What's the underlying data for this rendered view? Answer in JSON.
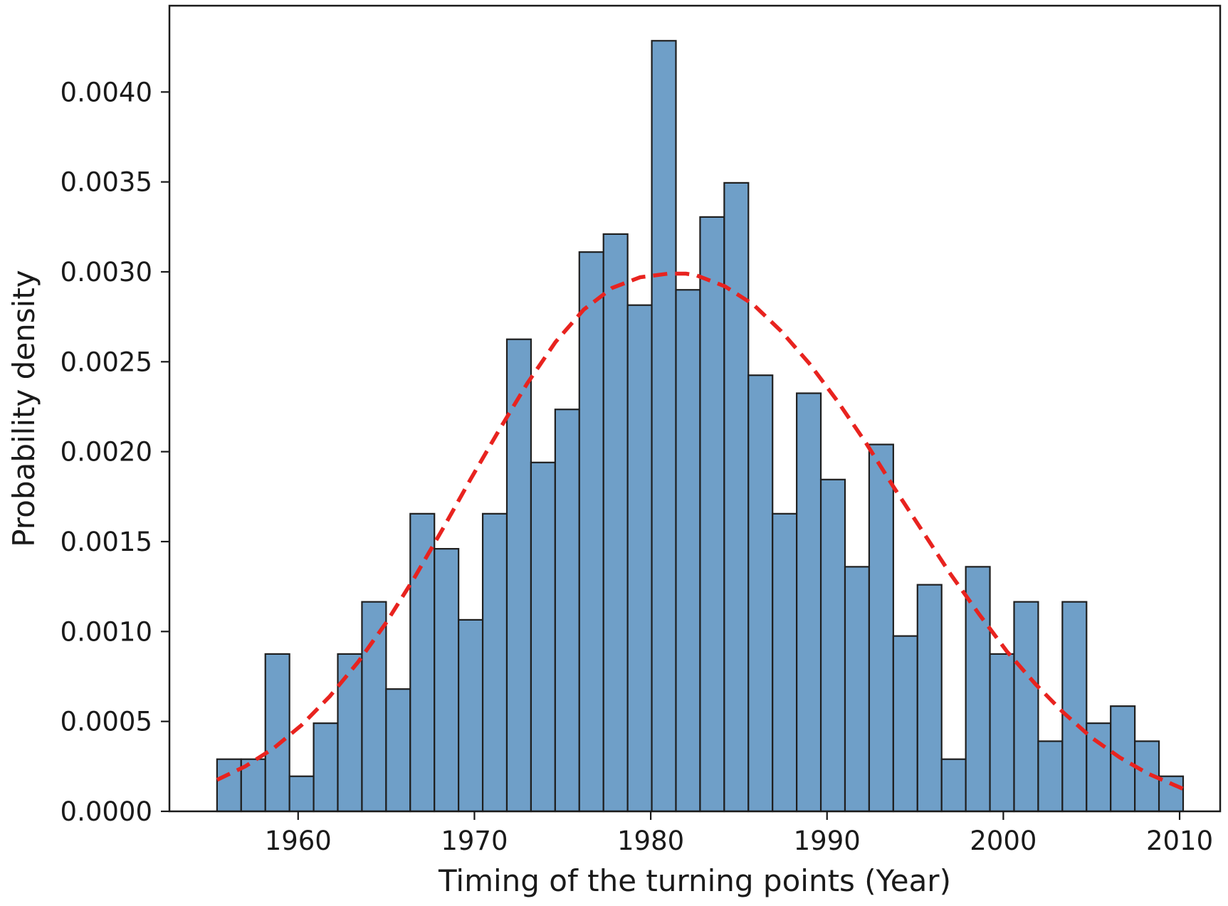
{
  "chart_data": {
    "type": "bar",
    "xlabel": "Timing of the turning points (Year)",
    "ylabel": "Probability density",
    "xlim": [
      1952.7,
      2012.3
    ],
    "ylim": [
      0,
      0.00448
    ],
    "x_ticks": [
      1960,
      1970,
      1980,
      1990,
      2000,
      2010
    ],
    "x_tick_labels": [
      "1960",
      "1970",
      "1980",
      "1990",
      "2000",
      "2010"
    ],
    "y_ticks": [
      0,
      0.0005,
      0.001,
      0.0015,
      0.002,
      0.0025,
      0.003,
      0.0035,
      0.004
    ],
    "y_tick_labels": [
      "0.0000",
      "0.0005",
      "0.0010",
      "0.0015",
      "0.0020",
      "0.0025",
      "0.0030",
      "0.0035",
      "0.0040"
    ],
    "grid": false,
    "bin_edges": [
      1955.4,
      1956.77,
      1958.14,
      1959.51,
      1960.88,
      1962.25,
      1963.62,
      1964.99,
      1966.36,
      1967.73,
      1969.1,
      1970.47,
      1971.84,
      1973.21,
      1974.58,
      1975.95,
      1977.32,
      1978.69,
      1980.06,
      1981.43,
      1982.8,
      1984.17,
      1985.54,
      1986.91,
      1988.28,
      1989.65,
      1991.02,
      1992.39,
      1993.76,
      1995.13,
      1996.5,
      1997.87,
      1999.24,
      2000.61,
      2001.98,
      2003.35,
      2004.72,
      2006.09,
      2007.46,
      2008.83,
      2010.2
    ],
    "series": [
      {
        "type": "histogram",
        "values": [
          0.00029,
          0.00029,
          0.000875,
          0.000195,
          0.00049,
          0.000875,
          0.001165,
          0.00068,
          0.001655,
          0.00146,
          0.001065,
          0.001655,
          0.002625,
          0.00194,
          0.002235,
          0.00311,
          0.00321,
          0.002815,
          0.004285,
          0.0029,
          0.003305,
          0.003495,
          0.002425,
          0.001655,
          0.002325,
          0.001845,
          0.00136,
          0.00204,
          0.000975,
          0.00126,
          0.00029,
          0.00136,
          0.000875,
          0.001165,
          0.00039,
          0.001165,
          0.00049,
          0.000585,
          0.00039,
          0.000195
        ],
        "color": "#6f9fc8",
        "edge_color": "#1f1f1f"
      },
      {
        "type": "line",
        "style": "dashed",
        "color": "#e8231f",
        "x": [
          1955.4,
          1957.0,
          1958.6,
          1960.2,
          1961.8,
          1963.4,
          1965.0,
          1966.6,
          1968.2,
          1969.8,
          1971.4,
          1973.0,
          1974.6,
          1976.2,
          1977.8,
          1979.4,
          1981.0,
          1982.0,
          1982.6,
          1984.2,
          1985.8,
          1987.4,
          1989.0,
          1990.6,
          1992.2,
          1993.8,
          1995.4,
          1997.0,
          1998.6,
          2000.2,
          2001.8,
          2003.4,
          2005.0,
          2006.6,
          2008.2,
          2010.2
        ],
        "y": [
          0.000175,
          0.00025,
          0.00035,
          0.00048,
          0.00064,
          0.00083,
          0.00105,
          0.0013,
          0.00157,
          0.00185,
          0.00212,
          0.00238,
          0.00261,
          0.00279,
          0.00291,
          0.00297,
          0.00299,
          0.00299,
          0.00298,
          0.00292,
          0.00282,
          0.00267,
          0.00249,
          0.00228,
          0.00205,
          0.0018,
          0.00156,
          0.00132,
          0.0011,
          0.00089,
          0.00071,
          0.00055,
          0.00041,
          0.0003,
          0.00021,
          0.000125
        ]
      }
    ]
  }
}
